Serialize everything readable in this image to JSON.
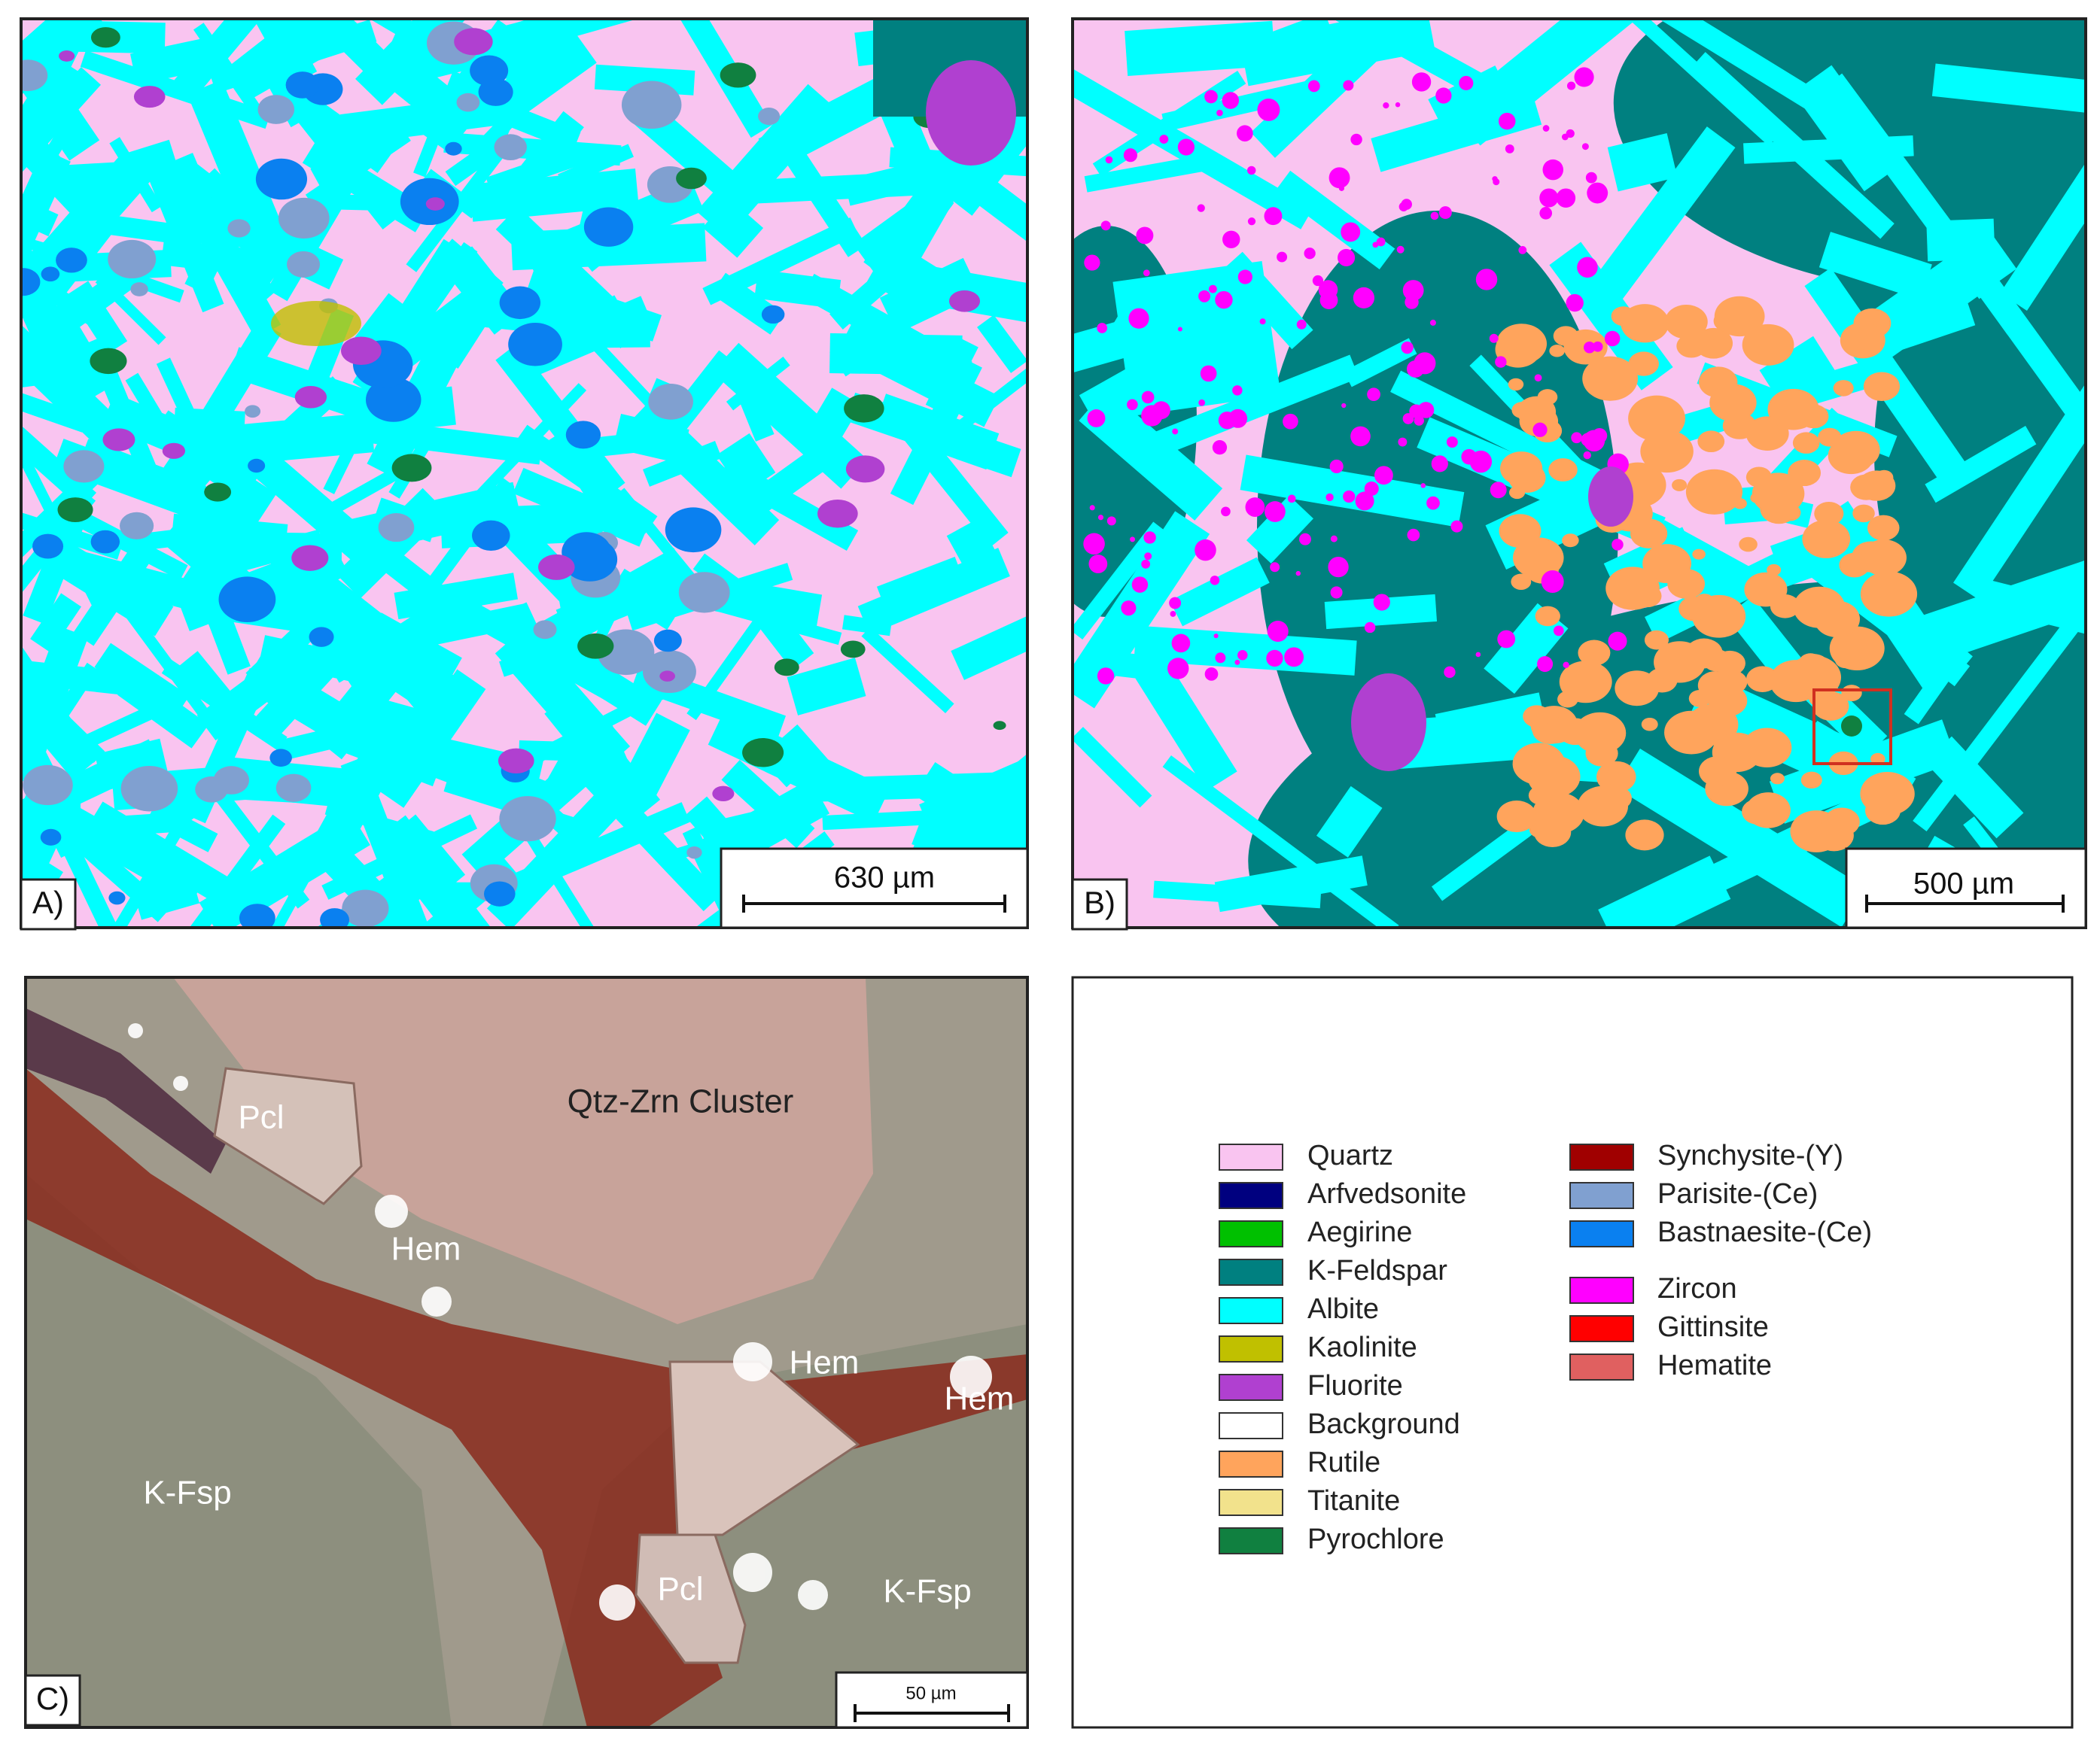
{
  "panels": [
    {
      "label": "A)",
      "scale_bar": "630 µm"
    },
    {
      "label": "B)",
      "scale_bar": "500 µm"
    },
    {
      "label": "C)",
      "scale_bar": "50 µm",
      "annotations": [
        "Pcl",
        "Qtz-Zrn Cluster",
        "Hem",
        "Hem",
        "Hem",
        "K-Fsp",
        "Pcl",
        "K-Fsp"
      ]
    }
  ],
  "legend": {
    "columns": [
      [
        [
          {
            "name": "Quartz",
            "color": "#f9c4f0"
          },
          {
            "name": "Arfvedsonite",
            "color": "#00007f"
          },
          {
            "name": "Aegirine",
            "color": "#00c000"
          },
          {
            "name": "K-Feldspar",
            "color": "#008080"
          },
          {
            "name": "Albite",
            "color": "#00ffff"
          },
          {
            "name": "Kaolinite",
            "color": "#c0c000"
          },
          {
            "name": "Fluorite",
            "color": "#b040d0"
          },
          {
            "name": "Background",
            "color": "#ffffff"
          },
          {
            "name": "Rutile",
            "color": "#ffa45c"
          },
          {
            "name": "Titanite",
            "color": "#f2e28c"
          },
          {
            "name": "Pyrochlore",
            "color": "#108040"
          }
        ]
      ],
      [
        [
          {
            "name": "Synchysite-(Y)",
            "color": "#a00000"
          },
          {
            "name": "Parisite-(Ce)",
            "color": "#80a0d0"
          },
          {
            "name": "Bastnaesite-(Ce)",
            "color": "#0a80f0"
          }
        ],
        [
          {
            "name": "Zircon",
            "color": "#ff00ff"
          },
          {
            "name": "Gittinsite",
            "color": "#ff0000"
          },
          {
            "name": "Hematite",
            "color": "#e06060"
          }
        ]
      ]
    ]
  }
}
